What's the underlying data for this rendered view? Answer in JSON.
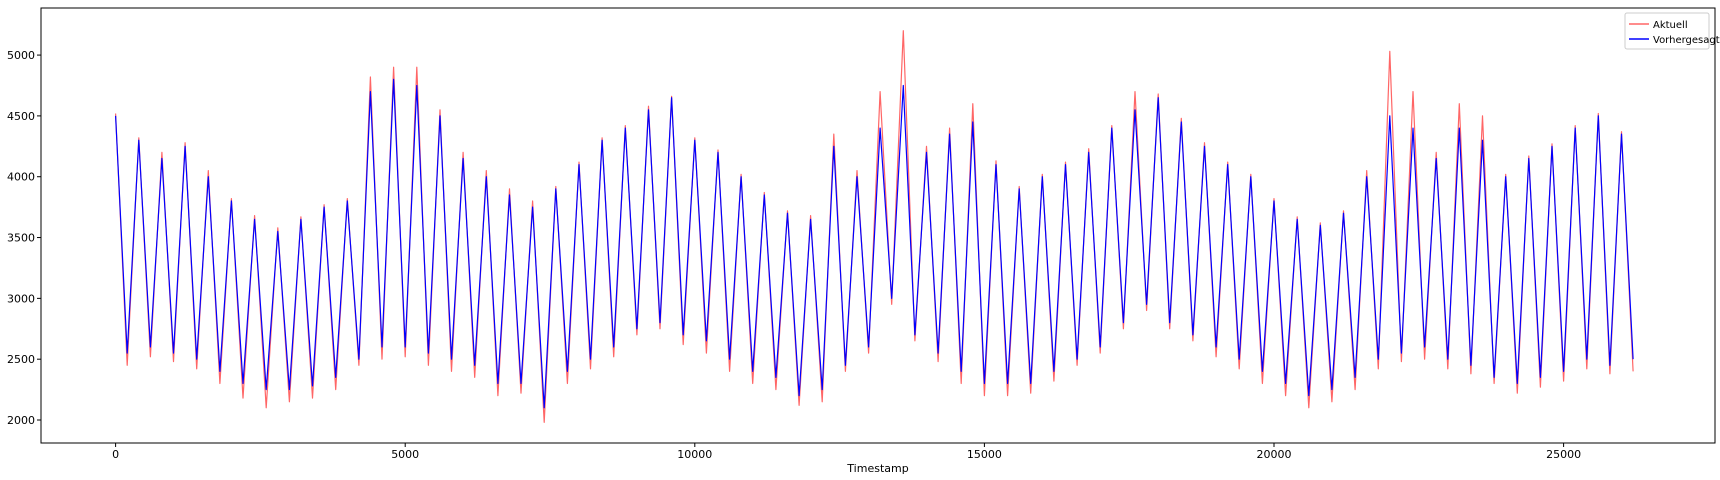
{
  "chart_data": {
    "type": "line",
    "xlabel": "Timestamp",
    "x": [
      0,
      200,
      400,
      600,
      800,
      1000,
      1200,
      1400,
      1600,
      1800,
      2000,
      2200,
      2400,
      2600,
      2800,
      3000,
      3200,
      3400,
      3600,
      3800,
      4000,
      4200,
      4400,
      4600,
      4800,
      5000,
      5200,
      5400,
      5600,
      5800,
      6000,
      6200,
      6400,
      6600,
      6800,
      7000,
      7200,
      7400,
      7600,
      7800,
      8000,
      8200,
      8400,
      8600,
      8800,
      9000,
      9200,
      9400,
      9600,
      9800,
      10000,
      10200,
      10400,
      10600,
      10800,
      11000,
      11200,
      11400,
      11600,
      11800,
      12000,
      12200,
      12400,
      12600,
      12800,
      13000,
      13200,
      13400,
      13600,
      13800,
      14000,
      14200,
      14400,
      14600,
      14800,
      15000,
      15200,
      15400,
      15600,
      15800,
      16000,
      16200,
      16400,
      16600,
      16800,
      17000,
      17200,
      17400,
      17600,
      17800,
      18000,
      18200,
      18400,
      18600,
      18800,
      19000,
      19200,
      19400,
      19600,
      19800,
      20000,
      20200,
      20400,
      20600,
      20800,
      21000,
      21200,
      21400,
      21600,
      21800,
      22000,
      22200,
      22400,
      22600,
      22800,
      23000,
      23200,
      23400,
      23600,
      23800,
      24000,
      24200,
      24400,
      24600,
      24800,
      25000,
      25200,
      25400,
      25600,
      25800,
      26000,
      26200
    ],
    "series": [
      {
        "name": "Aktuell",
        "color": "#ff6666",
        "values": [
          4520,
          2450,
          4320,
          2520,
          4200,
          2480,
          4280,
          2420,
          4050,
          2300,
          3820,
          2180,
          3680,
          2100,
          3580,
          2150,
          3670,
          2180,
          3770,
          2250,
          3820,
          2450,
          4820,
          2500,
          4900,
          2520,
          4900,
          2450,
          4550,
          2400,
          4200,
          2350,
          4050,
          2200,
          3900,
          2220,
          3800,
          1980,
          3920,
          2300,
          4120,
          2420,
          4320,
          2520,
          4420,
          2700,
          4580,
          2750,
          4660,
          2620,
          4320,
          2550,
          4220,
          2400,
          4020,
          2300,
          3870,
          2250,
          3720,
          2120,
          3680,
          2150,
          4350,
          2400,
          4050,
          2550,
          4700,
          2950,
          5200,
          2650,
          4250,
          2480,
          4400,
          2300,
          4600,
          2200,
          4130,
          2200,
          3920,
          2220,
          4020,
          2320,
          4120,
          2450,
          4230,
          2550,
          4420,
          2750,
          4700,
          2900,
          4680,
          2750,
          4480,
          2650,
          4280,
          2520,
          4120,
          2420,
          4020,
          2300,
          3820,
          2200,
          3670,
          2100,
          3620,
          2150,
          3720,
          2250,
          4050,
          2420,
          5030,
          2480,
          4700,
          2500,
          4200,
          2420,
          4600,
          2380,
          4500,
          2300,
          4020,
          2220,
          4170,
          2270,
          4270,
          2320,
          4420,
          2420,
          4520,
          2380,
          4370,
          2400
        ]
      },
      {
        "name": "Vorhergesagt",
        "color": "#0000ff",
        "values": [
          4500,
          2550,
          4300,
          2600,
          4150,
          2550,
          4250,
          2500,
          4000,
          2400,
          3800,
          2300,
          3650,
          2250,
          3550,
          2250,
          3650,
          2280,
          3750,
          2350,
          3800,
          2500,
          4700,
          2600,
          4800,
          2600,
          4750,
          2550,
          4500,
          2500,
          4150,
          2450,
          4000,
          2300,
          3850,
          2300,
          3750,
          2100,
          3900,
          2400,
          4100,
          2500,
          4300,
          2600,
          4400,
          2750,
          4550,
          2800,
          4650,
          2700,
          4300,
          2650,
          4200,
          2500,
          4000,
          2400,
          3850,
          2350,
          3700,
          2200,
          3650,
          2250,
          4250,
          2450,
          4000,
          2600,
          4400,
          3000,
          4750,
          2700,
          4200,
          2550,
          4350,
          2400,
          4450,
          2300,
          4100,
          2300,
          3900,
          2300,
          4000,
          2400,
          4100,
          2500,
          4200,
          2600,
          4400,
          2800,
          4550,
          2950,
          4650,
          2800,
          4450,
          2700,
          4250,
          2600,
          4100,
          2500,
          4000,
          2400,
          3800,
          2300,
          3650,
          2200,
          3600,
          2250,
          3700,
          2350,
          4000,
          2500,
          4500,
          2550,
          4400,
          2600,
          4150,
          2500,
          4400,
          2450,
          4300,
          2350,
          4000,
          2300,
          4150,
          2350,
          4250,
          2400,
          4400,
          2500,
          4500,
          2450,
          4350,
          2500
        ]
      }
    ],
    "xlim": [
      -1288,
      27614
    ],
    "ylim": [
      1811,
      5387
    ],
    "xticks": [
      0,
      5000,
      10000,
      15000,
      20000,
      25000
    ],
    "yticks": [
      2000,
      2500,
      3000,
      3500,
      4000,
      4500,
      5000
    ],
    "legend": "upper right"
  }
}
